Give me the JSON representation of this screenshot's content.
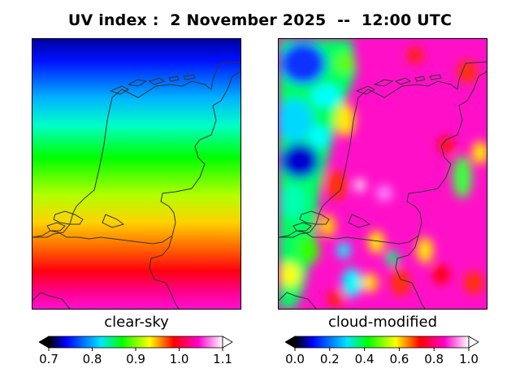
{
  "title": "UV index :  2 November 2025  --  12:00 UTC",
  "panels": [
    {
      "caption": "clear-sky",
      "colorbar": {
        "min": 0.7,
        "max": 1.1,
        "ticks": [
          "0.7",
          "0.8",
          "0.9",
          "1.0",
          "1.1"
        ],
        "extend": "both"
      }
    },
    {
      "caption": "cloud-modified",
      "colorbar": {
        "min": 0.0,
        "max": 1.0,
        "ticks": [
          "0.0",
          "0.2",
          "0.4",
          "0.6",
          "0.8",
          "1.0"
        ],
        "extend": "both"
      }
    }
  ],
  "colormap": [
    "#000000",
    "#0000ff",
    "#00e5ff",
    "#00ff00",
    "#ffff00",
    "#ff0000",
    "#ff00cc",
    "#ffffff"
  ],
  "region": "Netherlands",
  "coastline_color": "#333333"
}
